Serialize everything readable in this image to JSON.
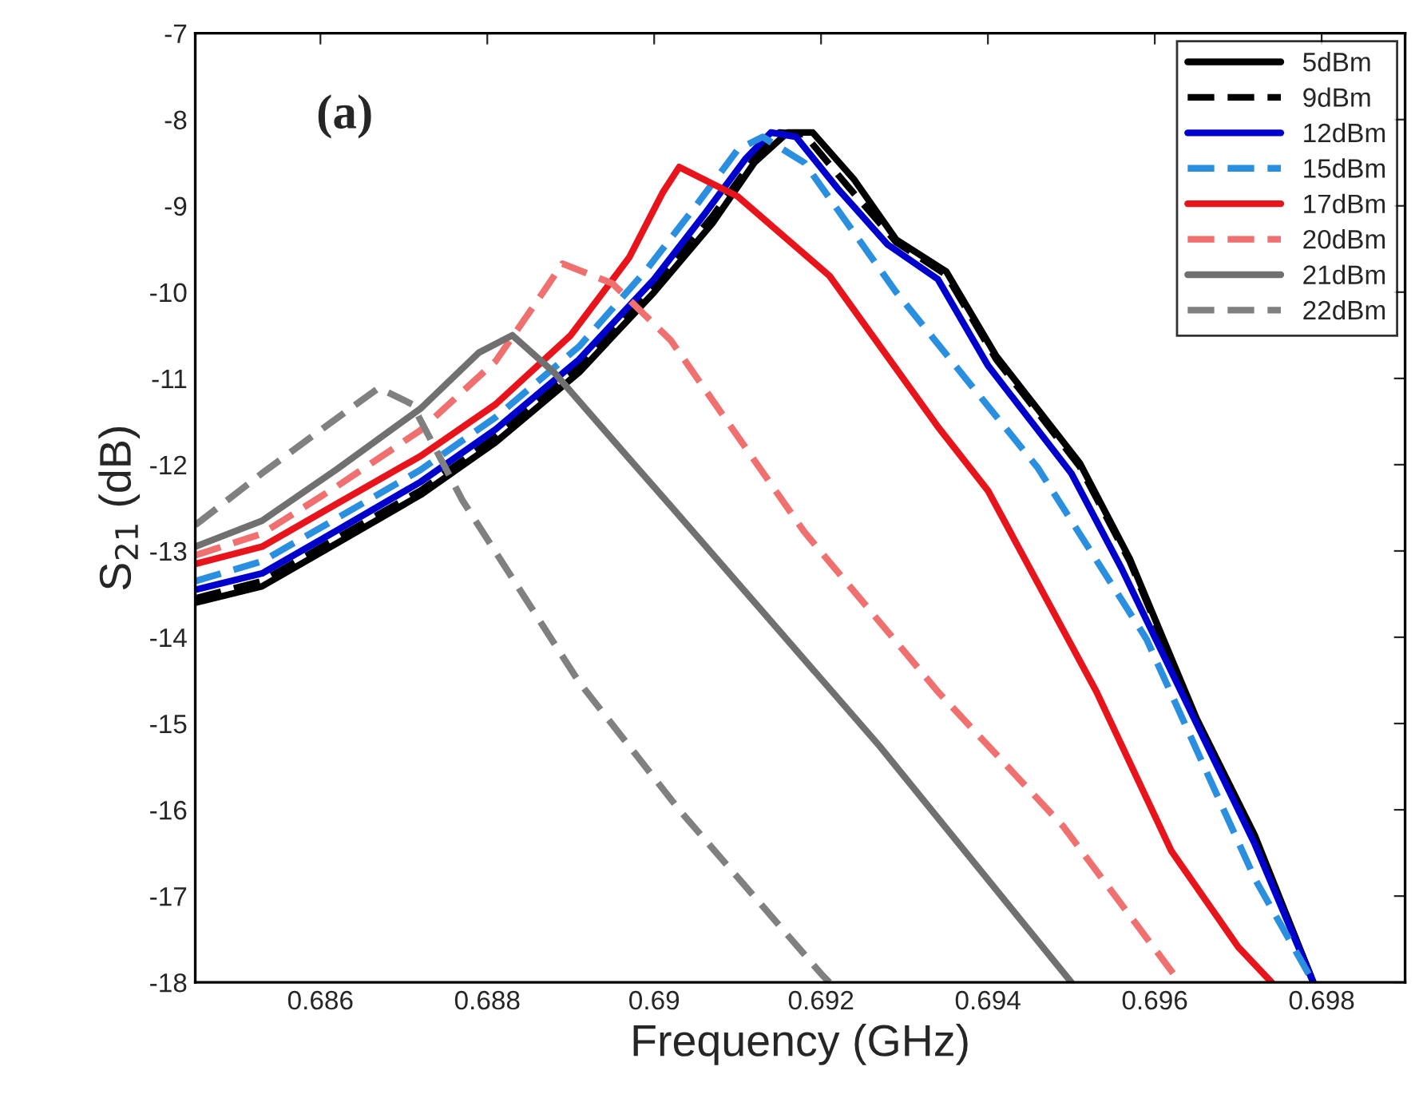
{
  "chart_data": {
    "type": "line",
    "xlabel": "Frequency (GHz)",
    "ylabel": "S$_{21}$ (dB)",
    "annotations": [
      "(a)"
    ],
    "xlim": [
      0.6845,
      0.699
    ],
    "xticks": [
      0.686,
      0.688,
      0.69,
      0.692,
      0.694,
      0.696,
      0.698
    ],
    "ylim": [
      -18,
      -7
    ],
    "yticks": [
      -18,
      -17,
      -16,
      -15,
      -14,
      -13,
      -12,
      -11,
      -10,
      -9,
      -8,
      -7
    ],
    "grid": false,
    "legend": "top right",
    "series": [
      {
        "name": "5dBm",
        "color": "#000000",
        "line_style": "solid",
        "x": [
          0.6845,
          0.6853,
          0.6862,
          0.6872,
          0.6881,
          0.6891,
          0.69,
          0.6907,
          0.6912,
          0.6916,
          0.6919,
          0.6924,
          0.6929,
          0.6935,
          0.6941,
          0.6951,
          0.6957,
          0.6965,
          0.6972,
          0.6979
        ],
        "values": [
          -13.6,
          -13.41,
          -12.91,
          -12.35,
          -11.74,
          -10.93,
          -10.0,
          -9.2,
          -8.5,
          -8.15,
          -8.15,
          -8.7,
          -9.39,
          -9.76,
          -10.74,
          -11.98,
          -13.09,
          -14.94,
          -16.3,
          -18
        ]
      },
      {
        "name": "9dBm",
        "color": "#000000",
        "line_style": "dashed",
        "x": [
          0.6845,
          0.6853,
          0.6862,
          0.6872,
          0.6881,
          0.6891,
          0.69,
          0.6907,
          0.6912,
          0.6915,
          0.6918,
          0.6923,
          0.6929,
          0.6935,
          0.6941,
          0.6951,
          0.6957,
          0.6965,
          0.6972,
          0.6979
        ],
        "values": [
          -13.55,
          -13.35,
          -12.85,
          -12.3,
          -11.68,
          -10.87,
          -9.93,
          -9.12,
          -8.45,
          -8.15,
          -8.17,
          -8.75,
          -9.42,
          -9.8,
          -10.78,
          -12.02,
          -13.12,
          -14.98,
          -16.33,
          -18
        ]
      },
      {
        "name": "12dBm",
        "color": "#0000cc",
        "line_style": "solid",
        "x": [
          0.6845,
          0.6853,
          0.6862,
          0.6872,
          0.6881,
          0.6891,
          0.69,
          0.6906,
          0.6911,
          0.6914,
          0.6917,
          0.6922,
          0.6928,
          0.6934,
          0.694,
          0.695,
          0.6956,
          0.6965,
          0.6972,
          0.6979
        ],
        "values": [
          -13.45,
          -13.26,
          -12.76,
          -12.2,
          -11.59,
          -10.78,
          -9.85,
          -9.1,
          -8.45,
          -8.15,
          -8.2,
          -8.8,
          -9.45,
          -9.85,
          -10.85,
          -12.1,
          -13.2,
          -15.0,
          -16.4,
          -18
        ]
      },
      {
        "name": "15dBm",
        "color": "#2b8fe0",
        "line_style": "dashed",
        "x": [
          0.6845,
          0.6853,
          0.6862,
          0.6872,
          0.6881,
          0.6891,
          0.6899,
          0.6905,
          0.691,
          0.6913,
          0.6918,
          0.6929,
          0.6946,
          0.6959,
          0.6972,
          0.6979
        ],
        "values": [
          -13.35,
          -13.12,
          -12.62,
          -12.06,
          -11.45,
          -10.63,
          -9.75,
          -9.0,
          -8.35,
          -8.2,
          -8.5,
          -10.0,
          -12.04,
          -14.02,
          -16.8,
          -18
        ]
      },
      {
        "name": "17dBm",
        "color": "#e8141b",
        "line_style": "solid",
        "x": [
          0.6845,
          0.6853,
          0.6862,
          0.6872,
          0.6881,
          0.689,
          0.6897,
          0.6901,
          0.6903,
          0.691,
          0.6921,
          0.6934,
          0.694,
          0.6953,
          0.6962,
          0.697,
          0.6974
        ],
        "values": [
          -13.15,
          -12.95,
          -12.45,
          -11.9,
          -11.3,
          -10.5,
          -9.6,
          -8.85,
          -8.55,
          -8.89,
          -9.81,
          -11.56,
          -12.3,
          -14.63,
          -16.48,
          -17.59,
          -18
        ]
      },
      {
        "name": "20dBm",
        "color": "#f07070",
        "line_style": "dashed",
        "x": [
          0.6845,
          0.6853,
          0.6862,
          0.6872,
          0.6881,
          0.6886,
          0.6889,
          0.6895,
          0.6902,
          0.6918,
          0.6934,
          0.6949,
          0.6963
        ],
        "values": [
          -13.05,
          -12.8,
          -12.25,
          -11.6,
          -10.8,
          -10.1,
          -9.67,
          -9.9,
          -10.56,
          -12.78,
          -14.63,
          -16.19,
          -18
        ]
      },
      {
        "name": "21dBm",
        "color": "#707070",
        "line_style": "solid",
        "x": [
          0.6845,
          0.6853,
          0.6862,
          0.6872,
          0.6879,
          0.6883,
          0.6888,
          0.6897,
          0.6902,
          0.6927,
          0.695
        ],
        "values": [
          -12.95,
          -12.65,
          -12.05,
          -11.35,
          -10.7,
          -10.5,
          -10.93,
          -11.93,
          -12.48,
          -15.26,
          -18
        ]
      },
      {
        "name": "22dBm",
        "color": "#808080",
        "line_style": "dashed",
        "x": [
          0.6845,
          0.6853,
          0.686,
          0.6867,
          0.6871,
          0.6877,
          0.6891,
          0.6903,
          0.692,
          0.6921
        ],
        "values": [
          -12.7,
          -12.1,
          -11.6,
          -11.11,
          -11.3,
          -12.41,
          -14.52,
          -16.0,
          -17.9,
          -18
        ]
      }
    ]
  }
}
